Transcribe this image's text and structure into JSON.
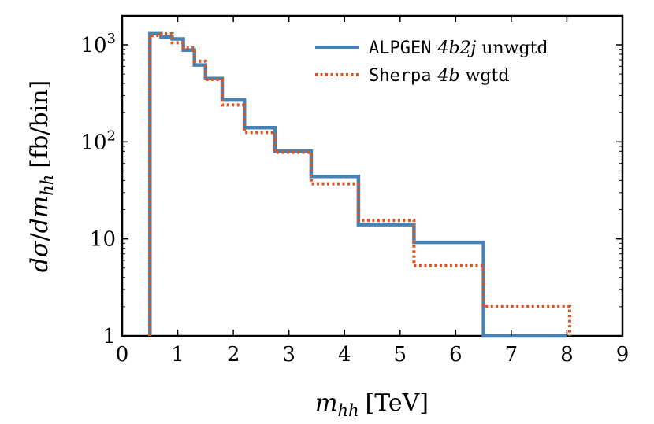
{
  "chart_data": {
    "type": "line",
    "style": "step-histogram",
    "title": "",
    "xlabel_parts": {
      "var": "m",
      "sub": "hh",
      "unit": "[TeV]"
    },
    "ylabel_parts": {
      "d": "d",
      "sigma": "σ",
      "slash": "/",
      "dm": "dm",
      "sub": "hh",
      "unit": "[fb/bin]"
    },
    "xlim": [
      0,
      9
    ],
    "ylim_log10": [
      0,
      3.3
    ],
    "y_scale": "log",
    "x_ticks": [
      0,
      1,
      2,
      3,
      4,
      5,
      6,
      7,
      8,
      9
    ],
    "x_tick_labels": [
      "0",
      "1",
      "2",
      "3",
      "4",
      "5",
      "6",
      "7",
      "8",
      "9"
    ],
    "y_ticks": [
      {
        "value": 1,
        "label": "1",
        "sup": ""
      },
      {
        "value": 10,
        "label": "10",
        "sup": ""
      },
      {
        "value": 100,
        "label": "10",
        "sup": "2"
      },
      {
        "value": 1000,
        "label": "10",
        "sup": "3"
      }
    ],
    "legend_position": "top-right",
    "series": [
      {
        "name": "ALPGEN 4b2j unwgtd",
        "legend_mono": "ALPGEN",
        "legend_math": "4b2j",
        "legend_tail": "unwgtd",
        "color": "#4682b4",
        "line_style": "solid",
        "edges": [
          0.5,
          0.7,
          0.9,
          1.1,
          1.3,
          1.5,
          1.8,
          2.2,
          2.75,
          3.4,
          4.25,
          5.25,
          6.5,
          8.0
        ],
        "values": [
          1300,
          1200,
          1150,
          880,
          620,
          450,
          270,
          140,
          80,
          44,
          14,
          9.2,
          1,
          1
        ]
      },
      {
        "name": "Sherpa 4b wgtd",
        "legend_mono": "Sherpa",
        "legend_math": "4b",
        "legend_tail": "wgtd",
        "color": "#d9541e",
        "line_style": "dotted",
        "edges": [
          0.5,
          0.7,
          0.9,
          1.1,
          1.3,
          1.5,
          1.8,
          2.2,
          2.75,
          3.4,
          4.25,
          5.25,
          6.5,
          8.05
        ],
        "values": [
          1250,
          1300,
          1050,
          930,
          680,
          440,
          240,
          125,
          78,
          37,
          15.5,
          5.3,
          2
        ]
      }
    ]
  }
}
